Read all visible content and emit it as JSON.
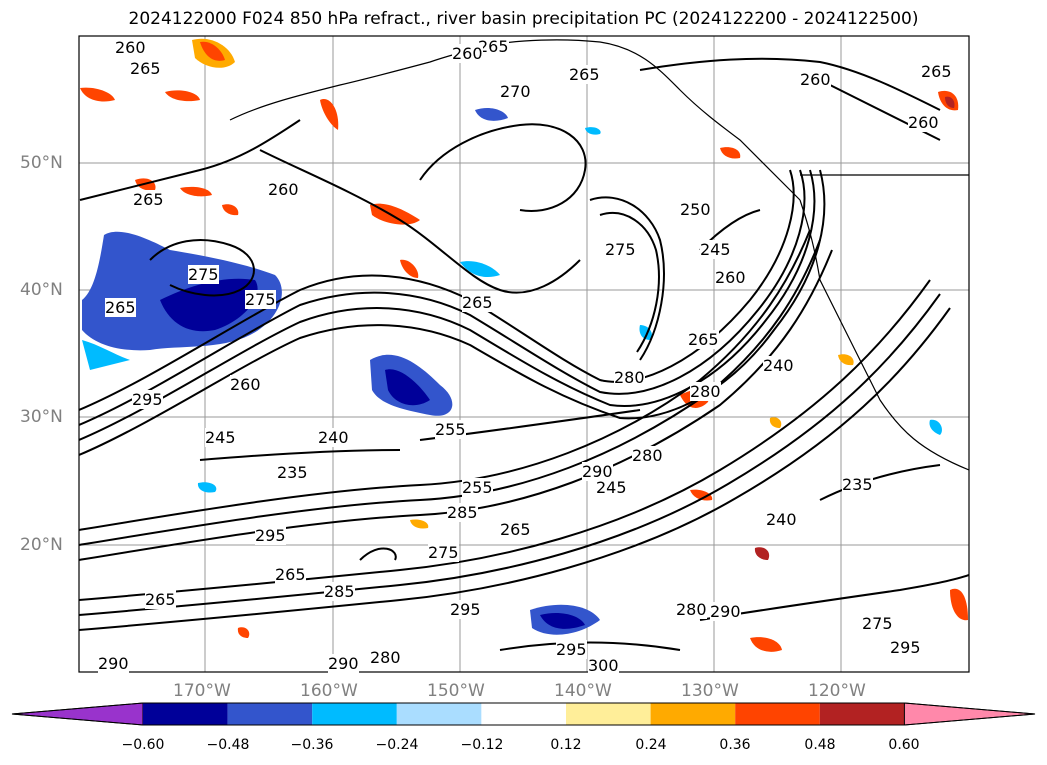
{
  "title": "2024122000 F024 850 hPa refract., river basin precipitation PC (2024122200 - 2024122500)",
  "map": {
    "lat_labels": [
      "50°N",
      "40°N",
      "30°N",
      "20°N"
    ],
    "lon_labels": [
      "170°W",
      "160°W",
      "150°W",
      "140°W",
      "130°W",
      "120°W"
    ],
    "contour_labels": [
      "260",
      "265",
      "265",
      "260",
      "265",
      "270",
      "265",
      "260",
      "265",
      "260",
      "265",
      "260",
      "265",
      "275",
      "265",
      "275",
      "275",
      "250",
      "245",
      "260",
      "265",
      "280",
      "240",
      "295",
      "260",
      "280",
      "245",
      "240",
      "255",
      "235",
      "255",
      "290",
      "280",
      "245",
      "285",
      "235",
      "240",
      "275",
      "295",
      "265",
      "285",
      "295",
      "290",
      "280",
      "295",
      "300",
      "280",
      "290",
      "275",
      "295",
      "290",
      "265"
    ]
  },
  "colorbar": {
    "ticks": [
      "−0.60",
      "−0.48",
      "−0.36",
      "−0.24",
      "−0.12",
      "0.12",
      "0.24",
      "0.36",
      "0.48",
      "0.60"
    ],
    "colors": [
      "#9933cc",
      "#000099",
      "#3355cc",
      "#00bbff",
      "#aaddff",
      "#ffffff",
      "#ffee99",
      "#ffaa00",
      "#ff4400",
      "#b22222",
      "#ff88aa"
    ]
  }
}
